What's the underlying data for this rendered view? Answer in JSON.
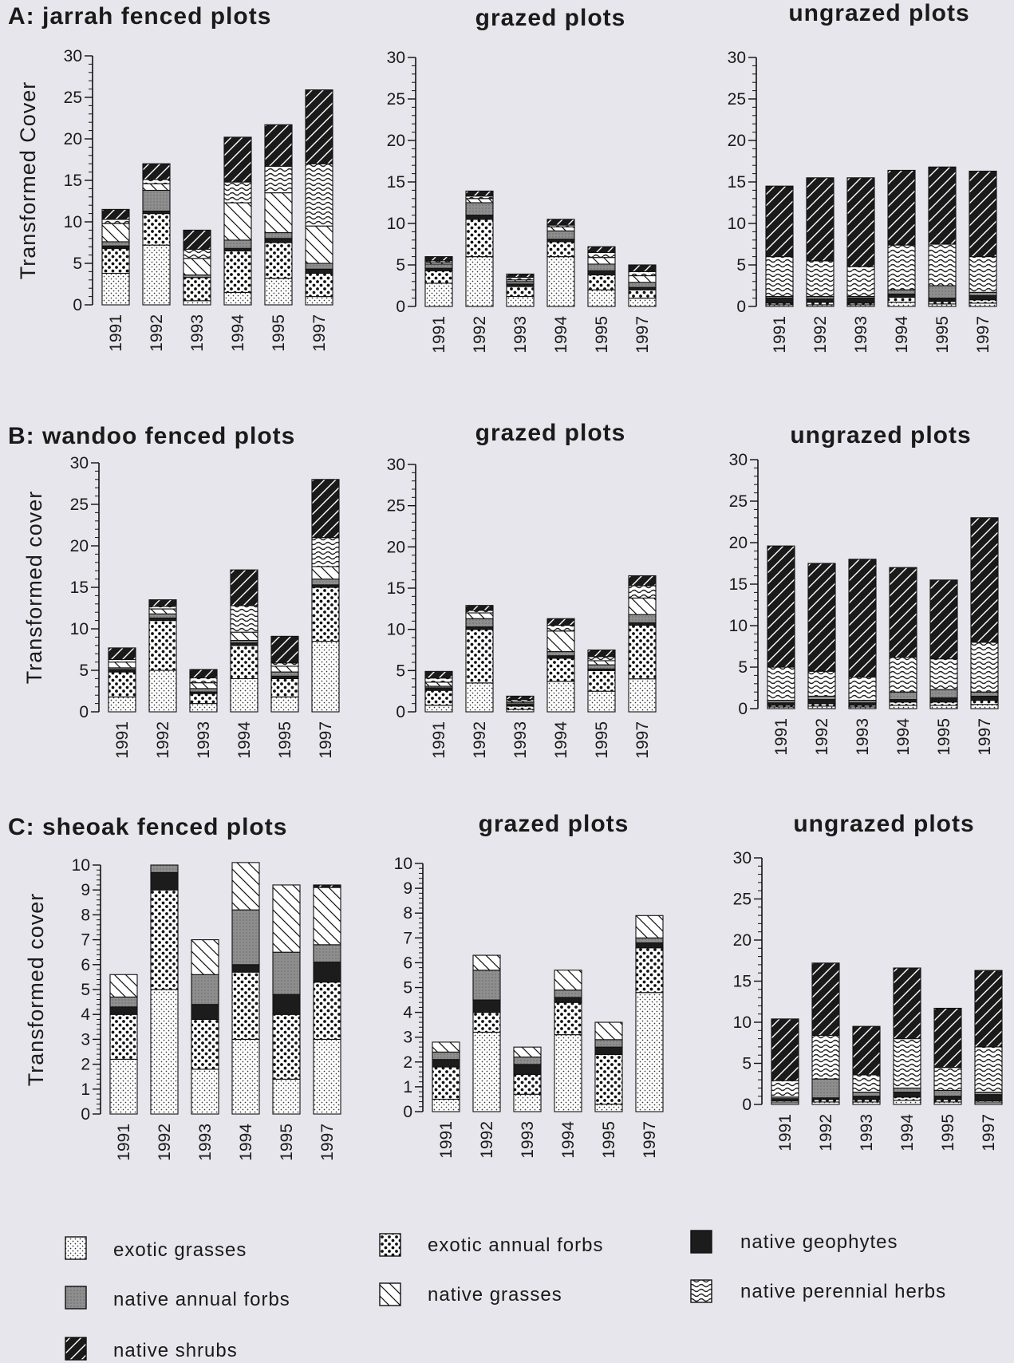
{
  "components": [
    "exotic grasses",
    "exotic annual forbs",
    "native geophytes",
    "native annual forbs",
    "native grasses",
    "native perennial herbs",
    "native shrubs"
  ],
  "patterns": {
    "exotic grasses": "dots-light",
    "exotic annual forbs": "dots-heavy",
    "native geophytes": "solid-dark",
    "native annual forbs": "gray",
    "native grasses": "hatch-back",
    "native perennial herbs": "wavy",
    "native shrubs": "hatch-forward-dark"
  },
  "legend": [
    {
      "key": "exotic grasses",
      "label": "exotic  grasses"
    },
    {
      "key": "exotic annual forbs",
      "label": "exotic  annual  forbs"
    },
    {
      "key": "native geophytes",
      "label": "native  geophytes"
    },
    {
      "key": "native annual forbs",
      "label": "native  annual  forbs"
    },
    {
      "key": "native grasses",
      "label": "native  grasses"
    },
    {
      "key": "native perennial herbs",
      "label": "native  perennial  herbs"
    },
    {
      "key": "native shrubs",
      "label": "native  shrubs"
    }
  ],
  "chart_data": [
    {
      "type": "bar",
      "stacked": true,
      "title": "A:  jarrah   fenced  plots",
      "ylabel": "Transformed  Cover",
      "ylim": [
        0,
        30
      ],
      "yticks": [
        0,
        5,
        10,
        15,
        20,
        25,
        30
      ],
      "categories": [
        "1991",
        "1992",
        "1993",
        "1994",
        "1995",
        "1997"
      ],
      "series": [
        {
          "name": "exotic grasses",
          "values": [
            3.8,
            7.2,
            0.5,
            1.5,
            3.2,
            1.0
          ]
        },
        {
          "name": "exotic annual forbs",
          "values": [
            3.0,
            3.8,
            2.8,
            5.0,
            4.3,
            2.8
          ]
        },
        {
          "name": "native geophytes",
          "values": [
            0.3,
            0.3,
            0.0,
            0.3,
            0.5,
            0.5
          ]
        },
        {
          "name": "native annual forbs",
          "values": [
            0.5,
            2.5,
            0.3,
            1.0,
            0.7,
            0.7
          ]
        },
        {
          "name": "native grasses",
          "values": [
            2.2,
            0.8,
            2.0,
            4.5,
            4.8,
            4.5
          ]
        },
        {
          "name": "native perennial herbs",
          "values": [
            0.5,
            0.5,
            1.1,
            2.5,
            3.2,
            7.5
          ]
        },
        {
          "name": "native shrubs",
          "values": [
            1.2,
            1.9,
            2.3,
            5.4,
            5.0,
            8.9
          ]
        }
      ]
    },
    {
      "type": "bar",
      "stacked": true,
      "title": "grazed  plots",
      "ylabel": "",
      "ylim": [
        0,
        30
      ],
      "yticks": [
        0,
        5,
        10,
        15,
        20,
        25,
        30
      ],
      "categories": [
        "1991",
        "1992",
        "1993",
        "1994",
        "1995",
        "1997"
      ],
      "series": [
        {
          "name": "exotic grasses",
          "values": [
            2.8,
            6.0,
            1.2,
            6.0,
            2.0,
            1.0
          ]
        },
        {
          "name": "exotic annual forbs",
          "values": [
            1.5,
            4.5,
            1.2,
            1.8,
            1.8,
            1.0
          ]
        },
        {
          "name": "native geophytes",
          "values": [
            0.3,
            0.5,
            0.3,
            0.3,
            0.5,
            0.3
          ]
        },
        {
          "name": "native annual forbs",
          "values": [
            0.5,
            1.5,
            0.3,
            1.0,
            0.8,
            0.6
          ]
        },
        {
          "name": "native grasses",
          "values": [
            0.2,
            0.5,
            0.2,
            0.5,
            0.8,
            0.8
          ]
        },
        {
          "name": "native perennial herbs",
          "values": [
            0.2,
            0.3,
            0.3,
            0.2,
            0.6,
            0.5
          ]
        },
        {
          "name": "native shrubs",
          "values": [
            0.5,
            0.6,
            0.4,
            0.7,
            0.7,
            0.8
          ]
        }
      ]
    },
    {
      "type": "bar",
      "stacked": true,
      "title": "ungrazed  plots",
      "ylabel": "",
      "ylim": [
        0,
        30
      ],
      "yticks": [
        0,
        5,
        10,
        15,
        20,
        25,
        30
      ],
      "categories": [
        "1991",
        "1992",
        "1993",
        "1994",
        "1995",
        "1997"
      ],
      "series": [
        {
          "name": "exotic grasses",
          "values": [
            0.2,
            0.2,
            0.2,
            0.5,
            0.3,
            0.4
          ]
        },
        {
          "name": "exotic annual forbs",
          "values": [
            0.2,
            0.3,
            0.2,
            0.6,
            0.3,
            0.4
          ]
        },
        {
          "name": "native geophytes",
          "values": [
            0.6,
            0.4,
            0.6,
            0.4,
            0.4,
            0.5
          ]
        },
        {
          "name": "native annual forbs",
          "values": [
            0.2,
            0.3,
            0.2,
            0.5,
            1.5,
            0.4
          ]
        },
        {
          "name": "native grasses",
          "values": [
            0.0,
            0.0,
            0.0,
            0.0,
            0.0,
            0.0
          ]
        },
        {
          "name": "native perennial herbs",
          "values": [
            4.8,
            4.3,
            3.6,
            5.4,
            5.0,
            4.3
          ]
        },
        {
          "name": "native shrubs",
          "values": [
            8.5,
            10.0,
            10.7,
            9.0,
            9.3,
            10.3
          ]
        }
      ]
    },
    {
      "type": "bar",
      "stacked": true,
      "title": "B:  wandoo  fenced  plots",
      "ylabel": "Transformed  cover",
      "ylim": [
        0,
        30
      ],
      "yticks": [
        0,
        5,
        10,
        15,
        20,
        25,
        30
      ],
      "categories": [
        "1991",
        "1992",
        "1993",
        "1994",
        "1995",
        "1997"
      ],
      "series": [
        {
          "name": "exotic grasses",
          "values": [
            1.8,
            5.0,
            1.0,
            4.0,
            1.8,
            8.5
          ]
        },
        {
          "name": "exotic annual forbs",
          "values": [
            3.0,
            6.0,
            1.2,
            4.0,
            2.2,
            6.5
          ]
        },
        {
          "name": "native geophytes",
          "values": [
            0.3,
            0.3,
            0.2,
            0.3,
            0.3,
            0.3
          ]
        },
        {
          "name": "native annual forbs",
          "values": [
            0.2,
            0.5,
            0.4,
            0.3,
            0.5,
            0.7
          ]
        },
        {
          "name": "native grasses",
          "values": [
            0.7,
            0.6,
            0.7,
            1.0,
            0.7,
            1.5
          ]
        },
        {
          "name": "native perennial herbs",
          "values": [
            0.3,
            0.3,
            0.6,
            3.2,
            0.4,
            3.5
          ]
        },
        {
          "name": "native shrubs",
          "values": [
            1.4,
            0.8,
            1.0,
            4.3,
            3.2,
            7.0
          ]
        }
      ]
    },
    {
      "type": "bar",
      "stacked": true,
      "title": "grazed  plots",
      "ylabel": "",
      "ylim": [
        0,
        30
      ],
      "yticks": [
        0,
        5,
        10,
        15,
        20,
        25,
        30
      ],
      "categories": [
        "1991",
        "1992",
        "1993",
        "1994",
        "1995",
        "1997"
      ],
      "series": [
        {
          "name": "exotic grasses",
          "values": [
            0.8,
            3.5,
            0.3,
            3.7,
            2.5,
            4.0
          ]
        },
        {
          "name": "exotic annual forbs",
          "values": [
            1.8,
            6.5,
            0.4,
            2.8,
            2.5,
            6.5
          ]
        },
        {
          "name": "native geophytes",
          "values": [
            0.3,
            0.3,
            0.2,
            0.3,
            0.2,
            0.3
          ]
        },
        {
          "name": "native annual forbs",
          "values": [
            0.2,
            1.0,
            0.2,
            0.5,
            0.5,
            1.0
          ]
        },
        {
          "name": "native grasses",
          "values": [
            0.5,
            0.7,
            0.2,
            2.5,
            0.5,
            2.0
          ]
        },
        {
          "name": "native perennial herbs",
          "values": [
            0.5,
            0.3,
            0.2,
            0.7,
            0.5,
            1.5
          ]
        },
        {
          "name": "native shrubs",
          "values": [
            0.8,
            0.6,
            0.4,
            0.8,
            0.8,
            1.2
          ]
        }
      ]
    },
    {
      "type": "bar",
      "stacked": true,
      "title": "ungrazed  plots",
      "ylabel": "",
      "ylim": [
        0,
        30
      ],
      "yticks": [
        0,
        5,
        10,
        15,
        20,
        25,
        30
      ],
      "categories": [
        "1991",
        "1992",
        "1993",
        "1994",
        "1995",
        "1997"
      ],
      "series": [
        {
          "name": "exotic grasses",
          "values": [
            0.2,
            0.3,
            0.2,
            0.4,
            0.4,
            0.5
          ]
        },
        {
          "name": "exotic annual forbs",
          "values": [
            0.2,
            0.3,
            0.2,
            0.4,
            0.4,
            0.5
          ]
        },
        {
          "name": "native geophytes",
          "values": [
            0.3,
            0.5,
            0.3,
            0.3,
            0.5,
            0.5
          ]
        },
        {
          "name": "native annual forbs",
          "values": [
            0.3,
            0.4,
            0.3,
            0.9,
            1.0,
            0.5
          ]
        },
        {
          "name": "native grasses",
          "values": [
            0.0,
            0.0,
            0.0,
            0.0,
            0.0,
            0.0
          ]
        },
        {
          "name": "native perennial herbs",
          "values": [
            4.0,
            3.0,
            2.8,
            4.2,
            3.7,
            6.0
          ]
        },
        {
          "name": "native shrubs",
          "values": [
            14.6,
            13.0,
            14.2,
            10.8,
            9.5,
            15.0
          ]
        }
      ]
    },
    {
      "type": "bar",
      "stacked": true,
      "title": "C:   sheoak   fenced  plots",
      "ylabel": "Transformed  cover",
      "ylim": [
        0,
        10
      ],
      "yticks": [
        0,
        1,
        2,
        3,
        4,
        5,
        6,
        7,
        8,
        9,
        10
      ],
      "categories": [
        "1991",
        "1992",
        "1993",
        "1994",
        "1995",
        "1997"
      ],
      "series": [
        {
          "name": "exotic grasses",
          "values": [
            2.2,
            5.0,
            1.8,
            3.0,
            1.4,
            3.0
          ]
        },
        {
          "name": "exotic annual forbs",
          "values": [
            1.8,
            4.0,
            2.0,
            2.7,
            2.6,
            2.3
          ]
        },
        {
          "name": "native geophytes",
          "values": [
            0.3,
            0.7,
            0.6,
            0.3,
            0.8,
            0.8
          ]
        },
        {
          "name": "native annual forbs",
          "values": [
            0.4,
            0.3,
            1.2,
            2.2,
            1.7,
            0.7
          ]
        },
        {
          "name": "native grasses",
          "values": [
            0.9,
            0.0,
            1.4,
            1.9,
            2.7,
            2.3
          ]
        },
        {
          "name": "native perennial herbs",
          "values": [
            0.0,
            0.0,
            0.0,
            0.0,
            0.0,
            0.0
          ]
        },
        {
          "name": "native shrubs",
          "values": [
            0.0,
            0.0,
            0.0,
            0.0,
            0.0,
            0.1
          ]
        }
      ]
    },
    {
      "type": "bar",
      "stacked": true,
      "title": "grazed  plots",
      "ylabel": "",
      "ylim": [
        0,
        10
      ],
      "yticks": [
        0,
        1,
        2,
        3,
        4,
        5,
        6,
        7,
        8,
        9,
        10
      ],
      "categories": [
        "1991",
        "1992",
        "1993",
        "1994",
        "1995",
        "1997"
      ],
      "series": [
        {
          "name": "exotic grasses",
          "values": [
            0.5,
            3.2,
            0.7,
            3.1,
            0.3,
            4.8
          ]
        },
        {
          "name": "exotic annual forbs",
          "values": [
            1.3,
            0.8,
            0.8,
            1.3,
            2.0,
            1.8
          ]
        },
        {
          "name": "native geophytes",
          "values": [
            0.3,
            0.5,
            0.4,
            0.2,
            0.3,
            0.2
          ]
        },
        {
          "name": "native annual forbs",
          "values": [
            0.3,
            1.2,
            0.3,
            0.3,
            0.3,
            0.2
          ]
        },
        {
          "name": "native grasses",
          "values": [
            0.4,
            0.6,
            0.4,
            0.8,
            0.7,
            0.9
          ]
        },
        {
          "name": "native perennial herbs",
          "values": [
            0.0,
            0.0,
            0.0,
            0.0,
            0.0,
            0.0
          ]
        },
        {
          "name": "native shrubs",
          "values": [
            0.0,
            0.0,
            0.0,
            0.0,
            0.0,
            0.0
          ]
        }
      ]
    },
    {
      "type": "bar",
      "stacked": true,
      "title": "ungrazed  plots",
      "ylabel": "",
      "ylim": [
        0,
        30
      ],
      "yticks": [
        0,
        5,
        10,
        15,
        20,
        25,
        30
      ],
      "categories": [
        "1991",
        "1992",
        "1993",
        "1994",
        "1995",
        "1997"
      ],
      "series": [
        {
          "name": "exotic grasses",
          "values": [
            0.2,
            0.3,
            0.3,
            0.5,
            0.3,
            0.2
          ]
        },
        {
          "name": "exotic annual forbs",
          "values": [
            0.2,
            0.3,
            0.3,
            0.4,
            0.3,
            0.2
          ]
        },
        {
          "name": "native geophytes",
          "values": [
            0.3,
            0.2,
            0.4,
            0.6,
            0.4,
            0.8
          ]
        },
        {
          "name": "native annual forbs",
          "values": [
            0.2,
            2.3,
            0.5,
            0.5,
            0.7,
            0.3
          ]
        },
        {
          "name": "native grasses",
          "values": [
            0.0,
            0.0,
            0.0,
            0.0,
            0.0,
            0.0
          ]
        },
        {
          "name": "native perennial herbs",
          "values": [
            2.0,
            5.3,
            2.1,
            6.0,
            2.8,
            5.5
          ]
        },
        {
          "name": "native shrubs",
          "values": [
            7.5,
            8.8,
            5.9,
            8.6,
            7.2,
            9.3
          ]
        }
      ]
    }
  ]
}
